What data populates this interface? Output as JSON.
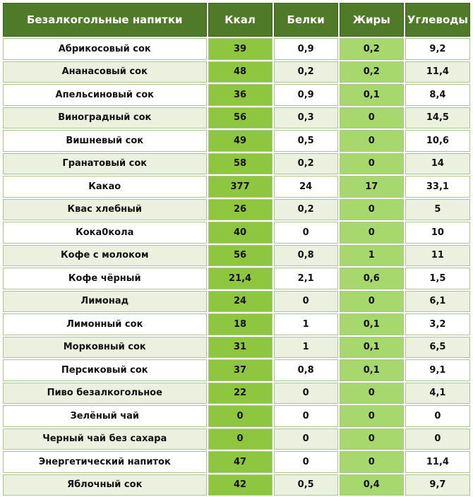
{
  "header": {
    "name": "Безалкогольные напитки",
    "kcal": "Ккал",
    "protein": "Белки",
    "fat": "Жиры",
    "carbs": "Углеводы"
  },
  "colors": {
    "header_bg": "#4f7a28",
    "kcal_col": "#8ec63f",
    "fat_col": "#a7d86e",
    "row_alt": "#ebf1de"
  },
  "rows": [
    {
      "name": "Абрикосовый  сок",
      "kcal": "39",
      "protein": "0,9",
      "fat": "0,2",
      "carbs": "9,2"
    },
    {
      "name": "Ананасовый  сок",
      "kcal": "48",
      "protein": "0,2",
      "fat": "0,2",
      "carbs": "11,4"
    },
    {
      "name": "Апельсиновый  сок",
      "kcal": "36",
      "protein": "0,9",
      "fat": "0,1",
      "carbs": "8,4"
    },
    {
      "name": "Виноградный  сок",
      "kcal": "56",
      "protein": "0,3",
      "fat": "0",
      "carbs": "14,5"
    },
    {
      "name": "Вишневый  сок",
      "kcal": "49",
      "protein": "0,5",
      "fat": "0",
      "carbs": "10,6"
    },
    {
      "name": "Гранатовый  сок",
      "kcal": "58",
      "protein": "0,2",
      "fat": "0",
      "carbs": "14"
    },
    {
      "name": "Какао",
      "kcal": "377",
      "protein": "24",
      "fat": "17",
      "carbs": "33,1"
    },
    {
      "name": "Квас  хлебный",
      "kcal": "26",
      "protein": "0,2",
      "fat": "0",
      "carbs": "5"
    },
    {
      "name": "Кока0кола",
      "kcal": "40",
      "protein": "0",
      "fat": "0",
      "carbs": "10"
    },
    {
      "name": "Кофе с молоком",
      "kcal": "56",
      "protein": "0,8",
      "fat": "1",
      "carbs": "11"
    },
    {
      "name": "Кофе  чёрный",
      "kcal": "21,4",
      "protein": "2,1",
      "fat": "0,6",
      "carbs": "1,5"
    },
    {
      "name": "Лимонад",
      "kcal": "24",
      "protein": "0",
      "fat": "0",
      "carbs": "6,1"
    },
    {
      "name": "Лимонный  сок",
      "kcal": "18",
      "protein": "1",
      "fat": "0,1",
      "carbs": "3,2"
    },
    {
      "name": "Морковный  сок",
      "kcal": "31",
      "protein": "1",
      "fat": "0,1",
      "carbs": "6,5"
    },
    {
      "name": "Персиковый  сок",
      "kcal": "37",
      "protein": "0,8",
      "fat": "0,1",
      "carbs": "9,1"
    },
    {
      "name": "Пиво безалкогольное",
      "kcal": "22",
      "protein": "0",
      "fat": "0",
      "carbs": "4,1"
    },
    {
      "name": "Зелёный  чай",
      "kcal": "0",
      "protein": "0",
      "fat": "0",
      "carbs": "0"
    },
    {
      "name": "Черный чай без сахара",
      "kcal": "0",
      "protein": "0",
      "fat": "0",
      "carbs": "0"
    },
    {
      "name": "Энергетический  напиток",
      "kcal": "47",
      "protein": "0",
      "fat": "0",
      "carbs": "11,4"
    },
    {
      "name": "Яблочный  сок",
      "kcal": "42",
      "protein": "0,5",
      "fat": "0,4",
      "carbs": "9,7"
    }
  ]
}
